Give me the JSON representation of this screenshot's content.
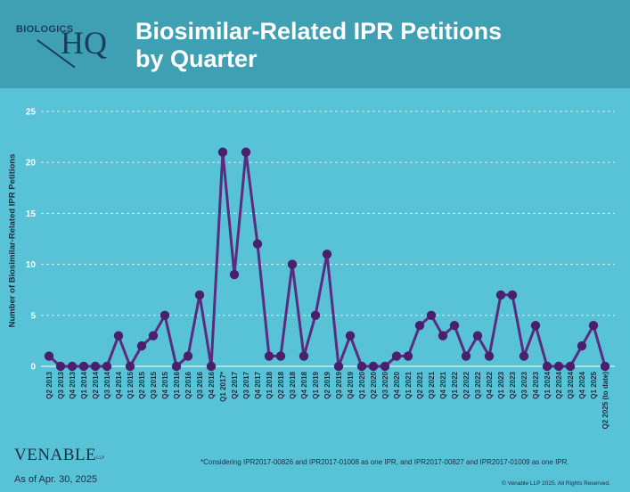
{
  "header": {
    "logo_top": "BIOLOGICS",
    "logo_main": "HQ",
    "title_line1": "Biosimilar-Related IPR Petitions",
    "title_line2": "by Quarter"
  },
  "colors": {
    "header_bg": "#3fa0b3",
    "plot_bg": "#58c3d6",
    "line": "#5c2a7e",
    "marker": "#4a1f6e",
    "title_text": "#ffffff"
  },
  "chart_data": {
    "type": "line",
    "title": "Biosimilar-Related IPR Petitions by Quarter",
    "xlabel": "",
    "ylabel": "Number of Biosimilar-Related IPR Petitions",
    "ylim": [
      0,
      25
    ],
    "yticks": [
      0,
      5,
      10,
      15,
      20,
      25
    ],
    "grid": true,
    "legend": "none",
    "categories": [
      "Q2 2013",
      "Q3 2013",
      "Q4 2013",
      "Q1 2014",
      "Q2 2014",
      "Q3 2014",
      "Q4 2014",
      "Q1 2015",
      "Q2 2015",
      "Q3 2015",
      "Q4 2015",
      "Q1 2016",
      "Q2 2016",
      "Q3 2016",
      "Q4 2016",
      "Q1 2017*",
      "Q2 2017",
      "Q3 2017",
      "Q4 2017",
      "Q1 2018",
      "Q2 2018",
      "Q3 2018",
      "Q4 2018",
      "Q1 2019",
      "Q2 2019",
      "Q3 2019",
      "Q4 2019",
      "Q1 2020",
      "Q2 2020",
      "Q3 2020",
      "Q4 2020",
      "Q1 2021",
      "Q2 2021",
      "Q3 2021",
      "Q4 2021",
      "Q1 2022",
      "Q2 2022",
      "Q3 2022",
      "Q4 2022",
      "Q1 2023",
      "Q2 2023",
      "Q3 2023",
      "Q4 2023",
      "Q1 2024",
      "Q2 2024",
      "Q3 2024",
      "Q4 2024",
      "Q1 2025",
      "Q2 2025 (to date)"
    ],
    "series": [
      {
        "values": [
          1,
          0,
          0,
          0,
          0,
          0,
          3,
          0,
          2,
          3,
          5,
          0,
          1,
          7,
          0,
          21,
          9,
          21,
          12,
          1,
          1,
          10,
          1,
          5,
          11,
          0,
          3,
          0,
          0,
          0,
          1,
          1,
          4,
          5,
          3,
          4,
          1,
          3,
          1,
          7,
          7,
          1,
          4,
          0,
          0,
          0,
          2,
          4,
          0
        ]
      }
    ]
  },
  "footer": {
    "brand": "VENABLE",
    "brand_suffix": "LLP",
    "as_of": "As of Apr. 30, 2025",
    "footnote": "*Considering IPR2017-00826 and IPR2017-01008 as one IPR, and IPR2017-00827 and IPR2017-01009 as one IPR.",
    "copyright": "© Venable LLP 2025. All Rights Reserved."
  }
}
